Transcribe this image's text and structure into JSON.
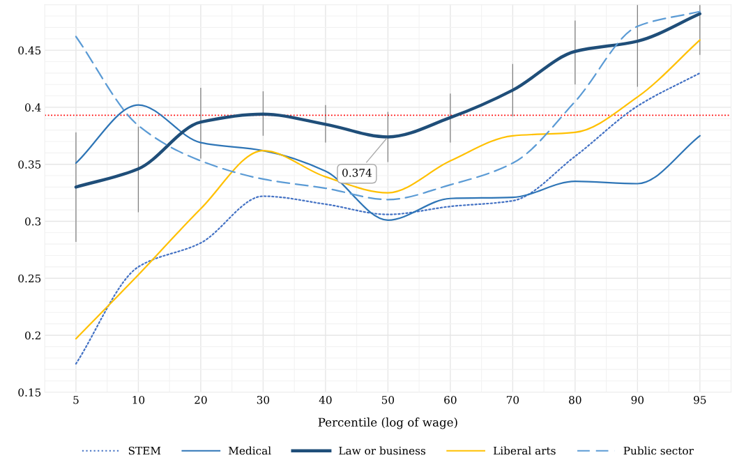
{
  "chart_data": {
    "type": "line",
    "xlabel": "Percentile (log of wage)",
    "categories": [
      "5",
      "10",
      "20",
      "30",
      "40",
      "50",
      "60",
      "70",
      "80",
      "90",
      "95"
    ],
    "series": [
      {
        "name": "STEM",
        "color": "#4472c4",
        "line_style": "dotted",
        "values": [
          0.175,
          0.26,
          0.281,
          0.322,
          0.315,
          0.306,
          0.313,
          0.318,
          0.357,
          0.401,
          0.43
        ]
      },
      {
        "name": "Medical",
        "color": "#2e75b6",
        "line_style": "solid",
        "values": [
          0.351,
          0.402,
          0.369,
          0.362,
          0.344,
          0.301,
          0.32,
          0.321,
          0.335,
          0.333,
          0.375
        ]
      },
      {
        "name": "Law or business",
        "color": "#1f4e79",
        "line_style": "solid",
        "values": [
          0.33,
          0.346,
          0.387,
          0.394,
          0.385,
          0.374,
          0.391,
          0.415,
          0.449,
          0.458,
          0.482
        ],
        "errors": [
          [
            0.282,
            0.378
          ],
          [
            0.308,
            0.383
          ],
          [
            0.355,
            0.417
          ],
          [
            0.375,
            0.414
          ],
          [
            0.369,
            0.402
          ],
          [
            0.352,
            0.396
          ],
          [
            0.369,
            0.412
          ],
          [
            0.392,
            0.438
          ],
          [
            0.42,
            0.476
          ],
          [
            0.418,
            0.49
          ],
          [
            0.446,
            0.49
          ]
        ]
      },
      {
        "name": "Liberal arts",
        "color": "#ffc000",
        "line_style": "solid",
        "values": [
          0.197,
          0.253,
          0.311,
          0.362,
          0.339,
          0.325,
          0.353,
          0.375,
          0.378,
          0.409,
          0.459
        ]
      },
      {
        "name": "Public sector",
        "color": "#5b9bd5",
        "line_style": "dashed",
        "values": [
          0.462,
          0.384,
          0.353,
          0.337,
          0.329,
          0.319,
          0.332,
          0.351,
          0.405,
          0.471,
          0.484
        ]
      }
    ],
    "ylim": [
      0.15,
      0.49
    ],
    "yticks": [
      0.15,
      0.2,
      0.25,
      0.3,
      0.35,
      0.4,
      0.45
    ],
    "ref_lines": [
      {
        "axis": "y",
        "value": 0.393,
        "color": "#ff0000",
        "line_style": "dotted"
      }
    ],
    "annotations": [
      {
        "text": "0.374",
        "x": "50",
        "y": 0.374
      }
    ],
    "grid": true,
    "legend": "bottom",
    "marker": "none"
  }
}
